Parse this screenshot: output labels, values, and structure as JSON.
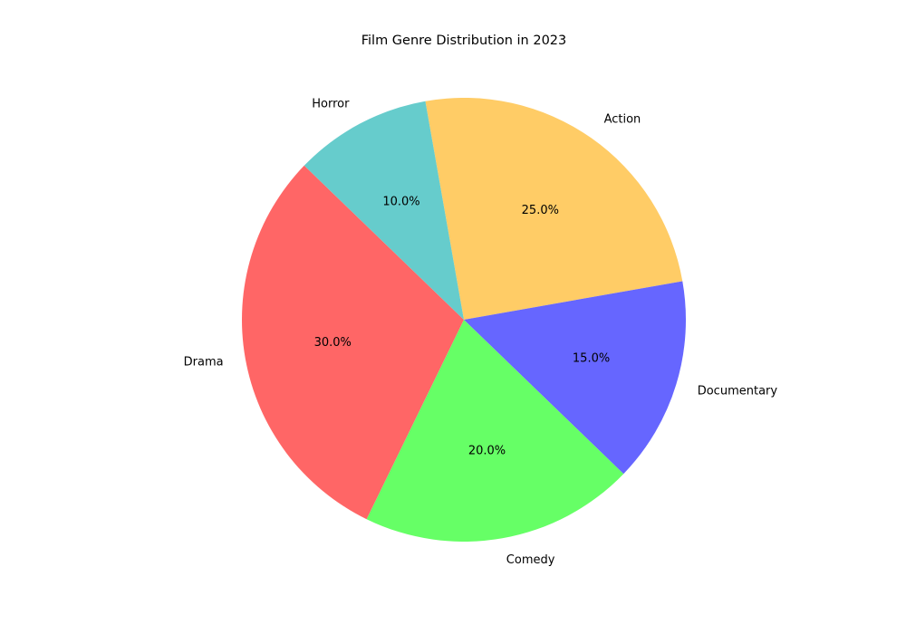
{
  "chart_data": {
    "type": "pie",
    "title": "Film Genre Distribution in 2023",
    "categories": [
      "Action",
      "Documentary",
      "Comedy",
      "Drama",
      "Horror"
    ],
    "values": [
      25.0,
      15.0,
      20.0,
      30.0,
      10.0
    ],
    "value_labels": [
      "25.0%",
      "15.0%",
      "20.0%",
      "30.0%",
      "10.0%"
    ],
    "colors": [
      "#ffcc66",
      "#6666ff",
      "#66ff66",
      "#ff6666",
      "#66cccc"
    ],
    "direction": "clockwise",
    "start_angle_deg": 100,
    "legend": "none"
  }
}
